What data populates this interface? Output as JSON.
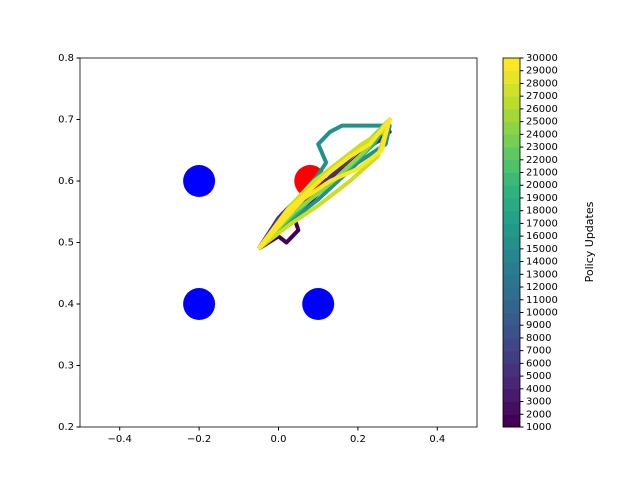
{
  "chart_data": {
    "type": "line",
    "xlim": [
      -0.5,
      0.5
    ],
    "xticks": [
      {
        "value": -0.4,
        "label": "−0.4"
      },
      {
        "value": -0.2,
        "label": "−0.2"
      },
      {
        "value": 0,
        "label": "0.0"
      },
      {
        "value": 0.2,
        "label": "0.2"
      },
      {
        "value": 0.4,
        "label": "0.4"
      }
    ],
    "ylim": [
      0.2,
      0.8
    ],
    "yticks": [
      0.2,
      0.3,
      0.4,
      0.5,
      0.6,
      0.7,
      0.8
    ],
    "points": [
      {
        "x": 0.08,
        "y": 0.6,
        "color": "#ff0000"
      },
      {
        "x": -0.2,
        "y": 0.6,
        "color": "#0000ff"
      },
      {
        "x": -0.2,
        "y": 0.4,
        "color": "#0000ff"
      },
      {
        "x": 0.1,
        "y": 0.4,
        "color": "#0000ff"
      }
    ],
    "series": [
      {
        "color": "#440154",
        "x": [
          -0.05,
          0.0,
          0.02,
          0.05,
          0.04,
          0.1,
          0.2,
          0.26,
          0.28,
          0.27,
          0.28
        ],
        "y": [
          0.49,
          0.51,
          0.5,
          0.52,
          0.54,
          0.58,
          0.64,
          0.67,
          0.68,
          0.69,
          0.68
        ]
      },
      {
        "color": "#472d7b",
        "x": [
          -0.05,
          0.0,
          0.03,
          0.06,
          0.12,
          0.2,
          0.27,
          0.28
        ],
        "y": [
          0.49,
          0.54,
          0.56,
          0.56,
          0.6,
          0.65,
          0.67,
          0.69
        ]
      },
      {
        "color": "#21918c",
        "x": [
          -0.05,
          0.02,
          0.06,
          0.1,
          0.12,
          0.1,
          0.13,
          0.16,
          0.22,
          0.28,
          0.27,
          0.2,
          0.1,
          0.0,
          -0.05
        ],
        "y": [
          0.49,
          0.55,
          0.58,
          0.61,
          0.63,
          0.66,
          0.68,
          0.69,
          0.69,
          0.69,
          0.66,
          0.63,
          0.57,
          0.52,
          0.49
        ]
      },
      {
        "color": "#2fb47c",
        "x": [
          -0.05,
          0.01,
          0.05,
          0.1,
          0.16,
          0.22,
          0.28,
          0.24,
          0.16,
          0.08,
          0.0,
          -0.05
        ],
        "y": [
          0.49,
          0.54,
          0.57,
          0.6,
          0.63,
          0.66,
          0.7,
          0.66,
          0.61,
          0.57,
          0.52,
          0.49
        ]
      },
      {
        "color": "#8fd744",
        "x": [
          -0.05,
          0.02,
          0.08,
          0.14,
          0.2,
          0.25,
          0.28,
          0.22,
          0.12,
          0.04,
          -0.05
        ],
        "y": [
          0.49,
          0.55,
          0.59,
          0.62,
          0.65,
          0.68,
          0.7,
          0.65,
          0.59,
          0.55,
          0.49
        ]
      },
      {
        "color": "#c8e020",
        "x": [
          -0.05,
          0.03,
          0.09,
          0.15,
          0.21,
          0.26,
          0.28,
          0.25,
          0.18,
          0.1,
          0.03,
          -0.05
        ],
        "y": [
          0.49,
          0.56,
          0.6,
          0.63,
          0.66,
          0.68,
          0.7,
          0.64,
          0.6,
          0.56,
          0.53,
          0.49
        ]
      },
      {
        "color": "#fde725",
        "x": [
          -0.05,
          0.02,
          0.07,
          0.12,
          0.18,
          0.23,
          0.28,
          0.26,
          0.2,
          0.13,
          0.06,
          -0.05
        ],
        "y": [
          0.49,
          0.55,
          0.58,
          0.61,
          0.64,
          0.66,
          0.7,
          0.65,
          0.62,
          0.6,
          0.57,
          0.49
        ]
      }
    ],
    "colorbar": {
      "label": "Policy Updates",
      "lim": [
        1000,
        30000
      ],
      "ticks": [
        1000,
        2000,
        3000,
        4000,
        5000,
        6000,
        7000,
        8000,
        9000,
        10000,
        11000,
        12000,
        13000,
        14000,
        15000,
        16000,
        17000,
        18000,
        19000,
        20000,
        21000,
        22000,
        23000,
        24000,
        25000,
        26000,
        27000,
        28000,
        29000,
        30000
      ],
      "colormap": [
        "#440154",
        "#482878",
        "#3e4989",
        "#31688e",
        "#26828e",
        "#1f9e89",
        "#35b779",
        "#6ece58",
        "#b5de2b",
        "#fde725"
      ]
    }
  }
}
